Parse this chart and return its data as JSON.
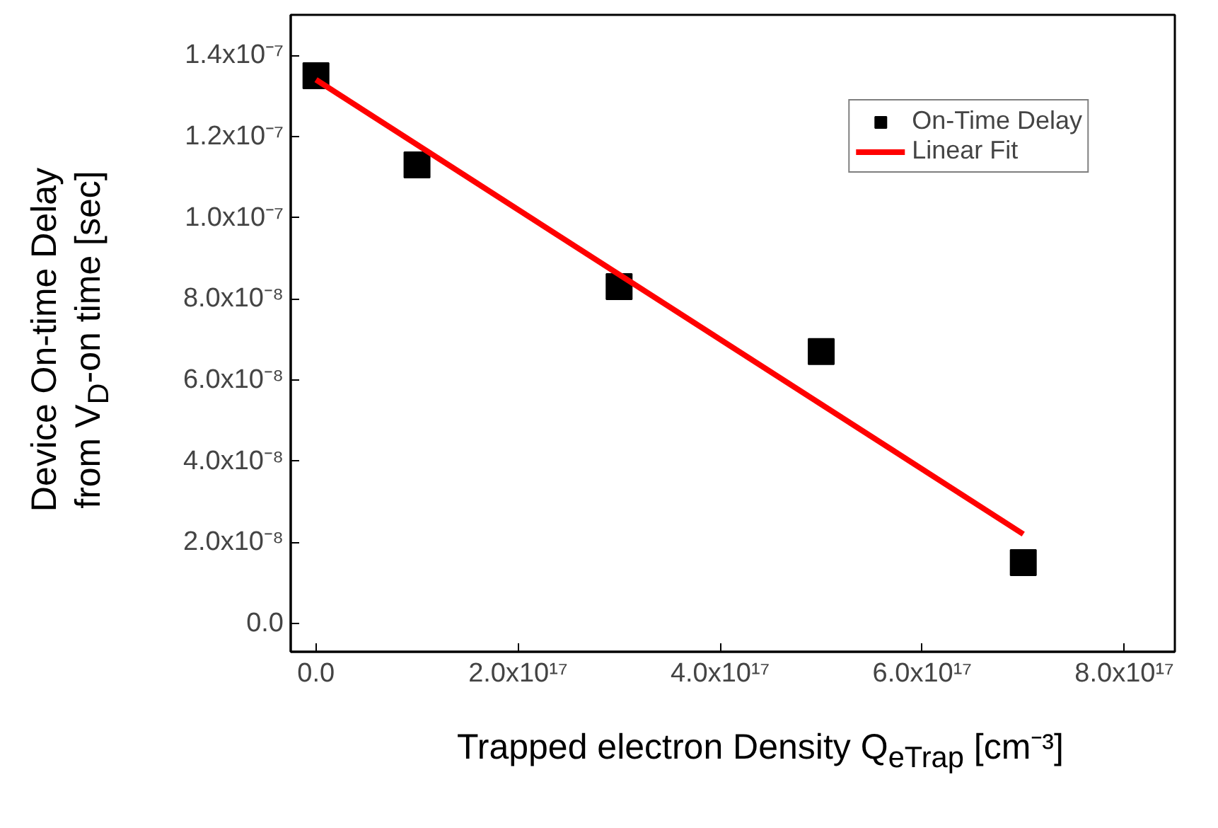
{
  "chart_data": {
    "type": "scatter",
    "xlabel": "Trapped electron Density Q$_{eTrap}$ [cm⁻³]",
    "ylabel": "Device On-time Delay\nfrom V$_{D}$-on time [sec]",
    "x": [
      0,
      1e+17,
      3e+17,
      5e+17,
      7e+17
    ],
    "series": [
      {
        "name": "On-Time Delay",
        "color": "#000000",
        "marker": "square",
        "values": [
          1.35e-07,
          1.13e-07,
          8.3e-08,
          6.7e-08,
          1.5e-08
        ]
      },
      {
        "name": "Linear Fit",
        "type": "line",
        "color": "#ff0000",
        "x": [
          0,
          7e+17
        ],
        "values": [
          1.34e-07,
          2.2e-08
        ]
      }
    ],
    "xlim": [
      -2.5e+16,
      8.5e+17
    ],
    "ylim": [
      -7e-09,
      1.5e-07
    ],
    "xticks": [
      {
        "value": 0,
        "label": "0.0"
      },
      {
        "value": 2e+17,
        "label": "2.0x10¹⁷"
      },
      {
        "value": 4e+17,
        "label": "4.0x10¹⁷"
      },
      {
        "value": 6e+17,
        "label": "6.0x10¹⁷"
      },
      {
        "value": 8e+17,
        "label": "8.0x10¹⁷"
      }
    ],
    "yticks": [
      {
        "value": 0,
        "label": "0.0"
      },
      {
        "value": 2e-08,
        "label": "2.0x10⁻⁸"
      },
      {
        "value": 4e-08,
        "label": "4.0x10⁻⁸"
      },
      {
        "value": 6e-08,
        "label": "6.0x10⁻⁸"
      },
      {
        "value": 8e-08,
        "label": "8.0x10⁻⁸"
      },
      {
        "value": 1e-07,
        "label": "1.0x10⁻⁷"
      },
      {
        "value": 1.2e-07,
        "label": "1.2x10⁻⁷"
      },
      {
        "value": 1.4e-07,
        "label": "1.4x10⁻⁷"
      }
    ],
    "legend": "top right",
    "grid": false
  }
}
